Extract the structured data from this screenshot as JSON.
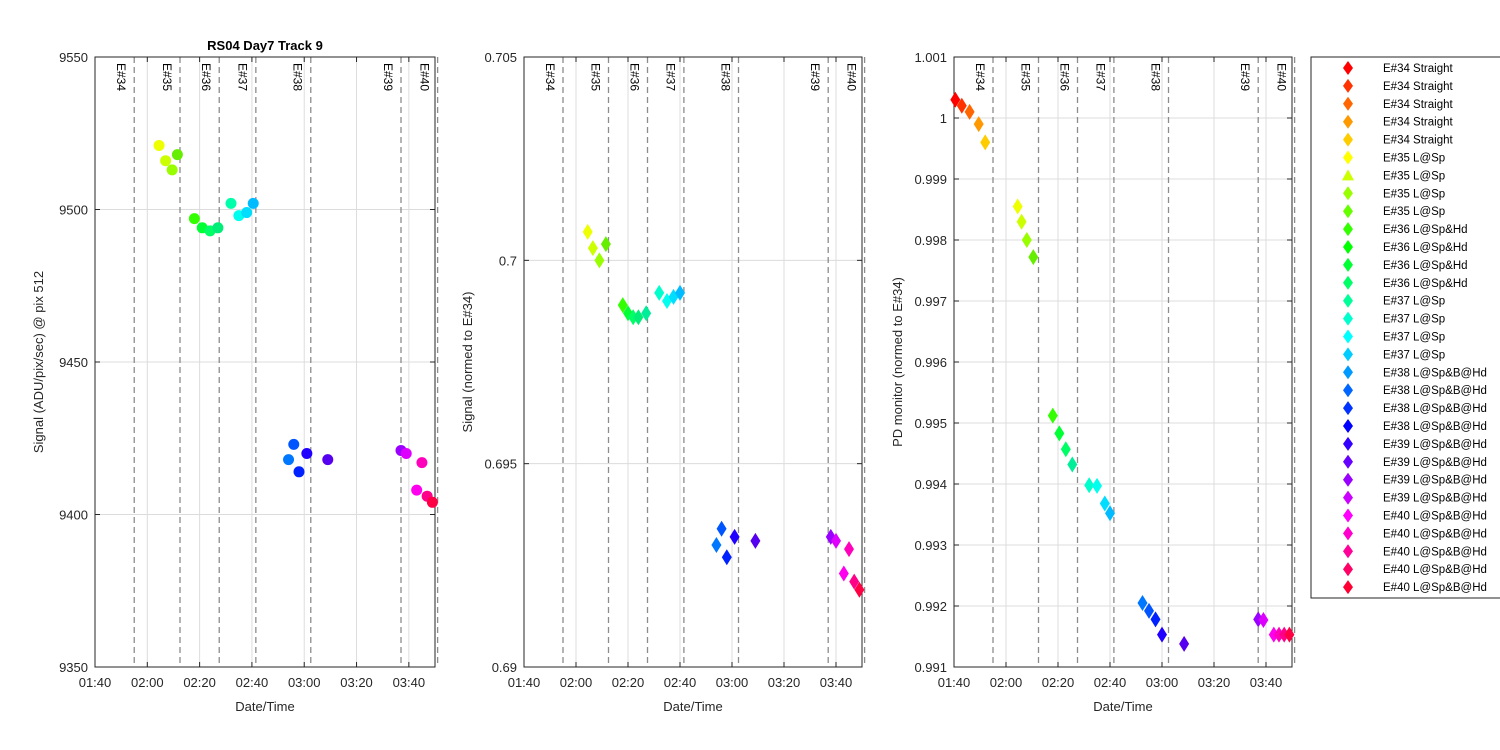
{
  "time_ticks": [
    "01:40",
    "02:00",
    "02:20",
    "02:40",
    "03:00",
    "03:20",
    "03:40"
  ],
  "events": [
    {
      "label": "E#34",
      "t": 15
    },
    {
      "label": "E#35",
      "t": 32.5
    },
    {
      "label": "E#36",
      "t": 47.5
    },
    {
      "label": "E#37",
      "t": 61.5
    },
    {
      "label": "E#38",
      "t": 82.5
    },
    {
      "label": "E#39",
      "t": 117
    },
    {
      "label": "E#40",
      "t": 131
    }
  ],
  "legend": [
    {
      "label": "E#34 Straight",
      "color": "#ff0000",
      "marker": "diamond"
    },
    {
      "label": "E#34 Straight",
      "color": "#ff3300",
      "marker": "diamond"
    },
    {
      "label": "E#34 Straight",
      "color": "#ff6600",
      "marker": "diamond"
    },
    {
      "label": "E#34 Straight",
      "color": "#ff9900",
      "marker": "diamond"
    },
    {
      "label": "E#34 Straight",
      "color": "#ffcc00",
      "marker": "diamond"
    },
    {
      "label": "E#35 L@Sp",
      "color": "#ffff00",
      "marker": "diamond"
    },
    {
      "label": "E#35 L@Sp",
      "color": "#ccff00",
      "marker": "triangle"
    },
    {
      "label": "E#35 L@Sp",
      "color": "#99ff00",
      "marker": "diamond"
    },
    {
      "label": "E#35 L@Sp",
      "color": "#66ff00",
      "marker": "diamond"
    },
    {
      "label": "E#36 L@Sp&Hd",
      "color": "#33ff00",
      "marker": "diamond"
    },
    {
      "label": "E#36 L@Sp&Hd",
      "color": "#00ff00",
      "marker": "diamond"
    },
    {
      "label": "E#36 L@Sp&Hd",
      "color": "#00ff33",
      "marker": "diamond"
    },
    {
      "label": "E#36 L@Sp&Hd",
      "color": "#00ff66",
      "marker": "diamond"
    },
    {
      "label": "E#37 L@Sp",
      "color": "#00ff99",
      "marker": "diamond"
    },
    {
      "label": "E#37 L@Sp",
      "color": "#00ffcc",
      "marker": "diamond"
    },
    {
      "label": "E#37 L@Sp",
      "color": "#00ffff",
      "marker": "diamond"
    },
    {
      "label": "E#37 L@Sp",
      "color": "#00ccff",
      "marker": "diamond"
    },
    {
      "label": "E#38 L@Sp&B@Hd",
      "color": "#0099ff",
      "marker": "diamond"
    },
    {
      "label": "E#38 L@Sp&B@Hd",
      "color": "#0066ff",
      "marker": "diamond"
    },
    {
      "label": "E#38 L@Sp&B@Hd",
      "color": "#0033ff",
      "marker": "diamond"
    },
    {
      "label": "E#38 L@Sp&B@Hd",
      "color": "#0000ff",
      "marker": "diamond"
    },
    {
      "label": "E#39 L@Sp&B@Hd",
      "color": "#3300ff",
      "marker": "diamond"
    },
    {
      "label": "E#39 L@Sp&B@Hd",
      "color": "#6600ff",
      "marker": "diamond"
    },
    {
      "label": "E#39 L@Sp&B@Hd",
      "color": "#9900ff",
      "marker": "diamond"
    },
    {
      "label": "E#39 L@Sp&B@Hd",
      "color": "#cc00ff",
      "marker": "diamond"
    },
    {
      "label": "E#40 L@Sp&B@Hd",
      "color": "#ff00ff",
      "marker": "diamond"
    },
    {
      "label": "E#40 L@Sp&B@Hd",
      "color": "#ff00cc",
      "marker": "diamond"
    },
    {
      "label": "E#40 L@Sp&B@Hd",
      "color": "#ff0099",
      "marker": "diamond"
    },
    {
      "label": "E#40 L@Sp&B@Hd",
      "color": "#ff0066",
      "marker": "diamond"
    },
    {
      "label": "E#40 L@Sp&B@Hd",
      "color": "#ff0033",
      "marker": "diamond"
    }
  ],
  "chart_data": [
    {
      "type": "scatter",
      "title": "RS04 Day7 Track 9",
      "xlabel": "Date/Time",
      "ylabel": "Signal (ADU/pix/sec) @ pix 512",
      "xlim": [
        "01:40",
        "03:50"
      ],
      "ylim": [
        9350,
        9550
      ],
      "yticks": [
        "9350",
        "9400",
        "9450",
        "9500",
        "9550"
      ],
      "marker": "circle",
      "grid": true,
      "points": [
        {
          "t": 24.5,
          "y": 9521,
          "c": "#eeff00"
        },
        {
          "t": 27,
          "y": 9516,
          "c": "#ccff00"
        },
        {
          "t": 29.5,
          "y": 9513,
          "c": "#99ff00"
        },
        {
          "t": 31.5,
          "y": 9518,
          "c": "#66ee00"
        },
        {
          "t": 38,
          "y": 9497,
          "c": "#33ff00"
        },
        {
          "t": 41,
          "y": 9494,
          "c": "#00ff33"
        },
        {
          "t": 44,
          "y": 9493,
          "c": "#00ff66"
        },
        {
          "t": 47,
          "y": 9494,
          "c": "#00ee77"
        },
        {
          "t": 52,
          "y": 9502,
          "c": "#00ffaa"
        },
        {
          "t": 55,
          "y": 9498,
          "c": "#00ffee"
        },
        {
          "t": 58,
          "y": 9499,
          "c": "#00ddff"
        },
        {
          "t": 60.5,
          "y": 9502,
          "c": "#00bbff"
        },
        {
          "t": 74,
          "y": 9418,
          "c": "#0077ff"
        },
        {
          "t": 76,
          "y": 9423,
          "c": "#0055ff"
        },
        {
          "t": 78,
          "y": 9414,
          "c": "#0022ff"
        },
        {
          "t": 81,
          "y": 9420,
          "c": "#2200ff"
        },
        {
          "t": 89,
          "y": 9418,
          "c": "#5500ee"
        },
        {
          "t": 117,
          "y": 9421,
          "c": "#9900ff"
        },
        {
          "t": 119,
          "y": 9420,
          "c": "#dd00ff"
        },
        {
          "t": 123,
          "y": 9408,
          "c": "#ff00ee"
        },
        {
          "t": 125,
          "y": 9417,
          "c": "#ff00bb"
        },
        {
          "t": 127,
          "y": 9406,
          "c": "#ff0088"
        },
        {
          "t": 129,
          "y": 9404,
          "c": "#ff0044"
        }
      ]
    },
    {
      "type": "scatter",
      "title": "",
      "xlabel": "Date/Time",
      "ylabel": "Signal (normed to E#34)",
      "xlim": [
        "01:40",
        "03:50"
      ],
      "ylim": [
        0.69,
        0.705
      ],
      "yticks": [
        "0.69",
        "0.695",
        "0.7",
        "0.705"
      ],
      "marker": "diamond",
      "grid": true,
      "points": [
        {
          "t": 24.5,
          "y": 0.7007,
          "c": "#eeff00"
        },
        {
          "t": 26.5,
          "y": 0.7003,
          "c": "#ccff00"
        },
        {
          "t": 29,
          "y": 0.7,
          "c": "#99ff00"
        },
        {
          "t": 31.5,
          "y": 0.7004,
          "c": "#66ee00"
        },
        {
          "t": 38,
          "y": 0.6989,
          "c": "#33ff00"
        },
        {
          "t": 40,
          "y": 0.6987,
          "c": "#00ff33"
        },
        {
          "t": 42,
          "y": 0.6986,
          "c": "#00ff66"
        },
        {
          "t": 44,
          "y": 0.6986,
          "c": "#00ee77"
        },
        {
          "t": 47,
          "y": 0.6987,
          "c": "#00ee99"
        },
        {
          "t": 52,
          "y": 0.6992,
          "c": "#00ffcc"
        },
        {
          "t": 55,
          "y": 0.699,
          "c": "#00ffee"
        },
        {
          "t": 57.5,
          "y": 0.6991,
          "c": "#00ddff"
        },
        {
          "t": 60,
          "y": 0.6992,
          "c": "#00bbff"
        },
        {
          "t": 74,
          "y": 0.693,
          "c": "#0077ff"
        },
        {
          "t": 76,
          "y": 0.6934,
          "c": "#0055ff"
        },
        {
          "t": 78,
          "y": 0.6927,
          "c": "#0022ff"
        },
        {
          "t": 81,
          "y": 0.6932,
          "c": "#2200ff"
        },
        {
          "t": 89,
          "y": 0.6931,
          "c": "#5500ee"
        },
        {
          "t": 118,
          "y": 0.6932,
          "c": "#9900ff"
        },
        {
          "t": 120,
          "y": 0.6931,
          "c": "#dd00ff"
        },
        {
          "t": 123,
          "y": 0.6923,
          "c": "#ff00ee"
        },
        {
          "t": 125,
          "y": 0.6929,
          "c": "#ff00bb"
        },
        {
          "t": 127,
          "y": 0.6921,
          "c": "#ff0088"
        },
        {
          "t": 129,
          "y": 0.6919,
          "c": "#ff0044"
        }
      ]
    },
    {
      "type": "scatter",
      "title": "",
      "xlabel": "Date/Time",
      "ylabel": "PD monitor (normed to E#34)",
      "xlim": [
        "01:40",
        "03:50"
      ],
      "ylim": [
        0.991,
        1.001
      ],
      "yticks": [
        "0.991",
        "0.992",
        "0.993",
        "0.994",
        "0.995",
        "0.996",
        "0.997",
        "0.998",
        "0.999",
        "1",
        "1.001"
      ],
      "marker": "diamond",
      "grid": true,
      "points": [
        {
          "t": 0.5,
          "y": 1.0003,
          "c": "#ff0000"
        },
        {
          "t": 3,
          "y": 1.0002,
          "c": "#ff3300"
        },
        {
          "t": 6,
          "y": 1.0001,
          "c": "#ff6600"
        },
        {
          "t": 9.5,
          "y": 0.9999,
          "c": "#ff9900"
        },
        {
          "t": 12,
          "y": 0.9996,
          "c": "#ffcc00"
        },
        {
          "t": 24.5,
          "y": 0.99855,
          "c": "#eeff00"
        },
        {
          "t": 26,
          "y": 0.9983,
          "c": "#ccff00"
        },
        {
          "t": 28,
          "y": 0.998,
          "c": "#99ff00"
        },
        {
          "t": 30.5,
          "y": 0.99772,
          "c": "#66ee00"
        },
        {
          "t": 38,
          "y": 0.99512,
          "c": "#33ff00"
        },
        {
          "t": 40.5,
          "y": 0.99483,
          "c": "#00ff33"
        },
        {
          "t": 43,
          "y": 0.99457,
          "c": "#00ff66"
        },
        {
          "t": 45.5,
          "y": 0.99432,
          "c": "#00ee99"
        },
        {
          "t": 52,
          "y": 0.99398,
          "c": "#00ffcc"
        },
        {
          "t": 55,
          "y": 0.99397,
          "c": "#00ffee"
        },
        {
          "t": 58,
          "y": 0.99368,
          "c": "#00ddff"
        },
        {
          "t": 60,
          "y": 0.99352,
          "c": "#00bbff"
        },
        {
          "t": 72.5,
          "y": 0.99205,
          "c": "#0077ff"
        },
        {
          "t": 75,
          "y": 0.99192,
          "c": "#0055ff"
        },
        {
          "t": 77.5,
          "y": 0.99178,
          "c": "#0022ff"
        },
        {
          "t": 80,
          "y": 0.99153,
          "c": "#2200ff"
        },
        {
          "t": 88.5,
          "y": 0.99138,
          "c": "#5500ee"
        },
        {
          "t": 117,
          "y": 0.99178,
          "c": "#9900ff"
        },
        {
          "t": 119,
          "y": 0.99177,
          "c": "#dd00ff"
        },
        {
          "t": 123,
          "y": 0.99153,
          "c": "#ff00ee"
        },
        {
          "t": 125,
          "y": 0.99153,
          "c": "#ff00bb"
        },
        {
          "t": 127,
          "y": 0.99153,
          "c": "#ff0088"
        },
        {
          "t": 129,
          "y": 0.99153,
          "c": "#ff0044"
        }
      ]
    }
  ]
}
